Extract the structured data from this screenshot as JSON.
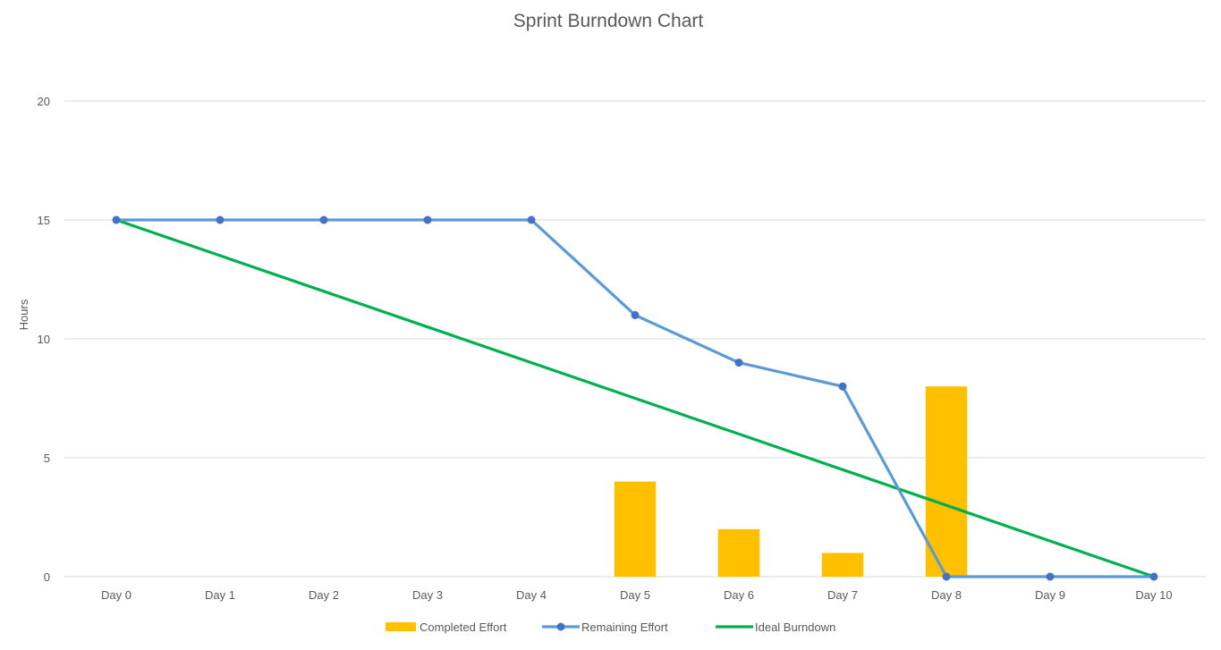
{
  "chart_data": {
    "type": "bar",
    "title": "Sprint Burndown Chart",
    "xlabel": "",
    "ylabel": "Hours",
    "ylim": [
      0,
      20
    ],
    "yticks": [
      0,
      5,
      10,
      15,
      20
    ],
    "grid": true,
    "legend_position": "bottom",
    "categories": [
      "Day 0",
      "Day 1",
      "Day 2",
      "Day 3",
      "Day 4",
      "Day 5",
      "Day 6",
      "Day 7",
      "Day 8",
      "Day 9",
      "Day 10"
    ],
    "series": [
      {
        "name": "Completed Effort",
        "type": "bar",
        "color": "#FFC000",
        "values": [
          null,
          null,
          null,
          null,
          null,
          4,
          2,
          1,
          8,
          null,
          null
        ]
      },
      {
        "name": "Remaining Effort",
        "type": "line",
        "color": "#5B9BD5",
        "marker_color": "#4472C4",
        "values": [
          15,
          15,
          15,
          15,
          15,
          11,
          9,
          8,
          0,
          0,
          0
        ]
      },
      {
        "name": "Ideal Burndown",
        "type": "line",
        "color": "#00B050",
        "values": [
          15,
          13.5,
          12,
          10.5,
          9,
          7.5,
          6,
          4.5,
          3,
          1.5,
          0
        ]
      }
    ]
  }
}
